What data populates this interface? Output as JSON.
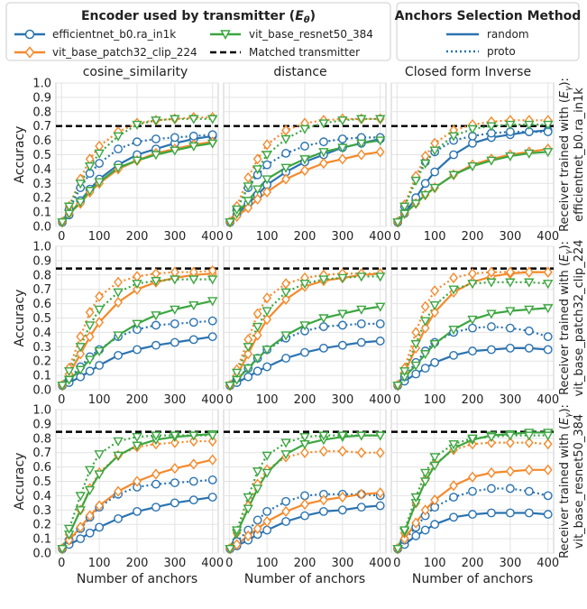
{
  "legend_encoders": {
    "title_text": "Encoder used by transmitter (",
    "title_math": "E",
    "title_sub": "θ",
    "title_close": ")",
    "entries": [
      "efficientnet_b0.ra_in1k",
      "vit_base_patch32_clip_224",
      "vit_base_resnet50_384",
      "Matched transmitter"
    ]
  },
  "legend_methods": {
    "title": "Anchors Selection Method",
    "entries": [
      "random",
      "proto"
    ]
  },
  "colors": {
    "efficientnet": "#2a73b0",
    "vit_clip": "#f5892a",
    "vit_resnet": "#3ca640",
    "matched": "#000000",
    "grid": "#e3e3e3",
    "frame": "#cccccc"
  },
  "row_label_prefix": "Receiver trained with (",
  "row_label_math": "E",
  "row_label_sub": "γ",
  "row_label_close": "):",
  "chart_data": {
    "type": "line",
    "columns": [
      "cosine_similarity",
      "distance",
      "Closed form Inverse"
    ],
    "rows": [
      "efficientnet_b0.ra_in1k",
      "vit_base_patch32_clip_224",
      "vit_base_resnet50_384"
    ],
    "xlabel": "Number of anchors",
    "ylabel": "Accuracy",
    "xlim": [
      -15,
      415
    ],
    "ylim": [
      0,
      1.0
    ],
    "xticks": [
      0,
      100,
      200,
      300,
      400
    ],
    "yticks": [
      "0.0",
      "0.1",
      "0.2",
      "0.3",
      "0.4",
      "0.5",
      "0.6",
      "0.7",
      "0.8",
      "0.9",
      "1.0"
    ],
    "x": [
      2,
      20,
      50,
      75,
      100,
      150,
      200,
      250,
      300,
      350,
      400
    ],
    "matched": [
      0.7,
      0.845,
      0.845
    ],
    "panels": [
      [
        {
          "eff_random": [
            0.03,
            0.08,
            0.18,
            0.26,
            0.33,
            0.43,
            0.5,
            0.54,
            0.58,
            0.61,
            0.63
          ],
          "eff_proto": [
            0.03,
            0.12,
            0.27,
            0.37,
            0.44,
            0.54,
            0.59,
            0.61,
            0.62,
            0.63,
            0.64
          ],
          "clip_random": [
            0.03,
            0.09,
            0.16,
            0.24,
            0.3,
            0.4,
            0.46,
            0.51,
            0.54,
            0.57,
            0.59
          ],
          "clip_proto": [
            0.03,
            0.14,
            0.33,
            0.47,
            0.56,
            0.66,
            0.72,
            0.74,
            0.75,
            0.76,
            0.76
          ],
          "res_random": [
            0.03,
            0.09,
            0.17,
            0.25,
            0.31,
            0.41,
            0.46,
            0.5,
            0.53,
            0.56,
            0.58
          ],
          "res_proto": [
            0.03,
            0.14,
            0.3,
            0.42,
            0.51,
            0.63,
            0.71,
            0.74,
            0.75,
            0.75,
            0.75
          ]
        },
        {
          "eff_random": [
            0.03,
            0.08,
            0.16,
            0.22,
            0.29,
            0.38,
            0.45,
            0.5,
            0.55,
            0.58,
            0.61
          ],
          "eff_proto": [
            0.03,
            0.13,
            0.27,
            0.36,
            0.43,
            0.51,
            0.56,
            0.59,
            0.61,
            0.62,
            0.62
          ],
          "clip_random": [
            0.03,
            0.07,
            0.13,
            0.19,
            0.24,
            0.33,
            0.39,
            0.44,
            0.47,
            0.5,
            0.52
          ],
          "clip_proto": [
            0.03,
            0.14,
            0.34,
            0.47,
            0.57,
            0.67,
            0.72,
            0.74,
            0.75,
            0.75,
            0.75
          ],
          "res_random": [
            0.03,
            0.09,
            0.18,
            0.26,
            0.33,
            0.41,
            0.47,
            0.52,
            0.55,
            0.58,
            0.6
          ],
          "res_proto": [
            0.03,
            0.12,
            0.28,
            0.4,
            0.5,
            0.61,
            0.68,
            0.72,
            0.74,
            0.75,
            0.75
          ]
        },
        {
          "eff_random": [
            0.03,
            0.09,
            0.2,
            0.3,
            0.38,
            0.5,
            0.58,
            0.62,
            0.64,
            0.66,
            0.67
          ],
          "eff_proto": [
            0.03,
            0.14,
            0.34,
            0.45,
            0.52,
            0.6,
            0.63,
            0.65,
            0.66,
            0.66,
            0.66
          ],
          "clip_random": [
            0.03,
            0.09,
            0.16,
            0.22,
            0.27,
            0.36,
            0.43,
            0.47,
            0.5,
            0.52,
            0.54
          ],
          "clip_proto": [
            0.03,
            0.15,
            0.35,
            0.49,
            0.58,
            0.67,
            0.71,
            0.73,
            0.74,
            0.74,
            0.74
          ],
          "res_random": [
            0.03,
            0.09,
            0.16,
            0.22,
            0.27,
            0.36,
            0.42,
            0.46,
            0.49,
            0.51,
            0.52
          ],
          "res_proto": [
            0.03,
            0.14,
            0.32,
            0.44,
            0.53,
            0.63,
            0.68,
            0.7,
            0.71,
            0.71,
            0.71
          ]
        }
      ],
      [
        {
          "eff_random": [
            0.03,
            0.05,
            0.09,
            0.13,
            0.17,
            0.24,
            0.28,
            0.31,
            0.33,
            0.35,
            0.37
          ],
          "eff_proto": [
            0.03,
            0.08,
            0.16,
            0.23,
            0.28,
            0.37,
            0.42,
            0.45,
            0.46,
            0.47,
            0.48
          ],
          "clip_random": [
            0.03,
            0.11,
            0.25,
            0.37,
            0.47,
            0.61,
            0.7,
            0.75,
            0.78,
            0.8,
            0.81
          ],
          "clip_proto": [
            0.03,
            0.15,
            0.37,
            0.54,
            0.65,
            0.75,
            0.79,
            0.81,
            0.82,
            0.82,
            0.83
          ],
          "res_random": [
            0.03,
            0.07,
            0.14,
            0.21,
            0.27,
            0.38,
            0.46,
            0.52,
            0.56,
            0.59,
            0.62
          ],
          "res_proto": [
            0.03,
            0.13,
            0.3,
            0.45,
            0.56,
            0.68,
            0.74,
            0.76,
            0.77,
            0.77,
            0.77
          ]
        },
        {
          "eff_random": [
            0.03,
            0.05,
            0.09,
            0.13,
            0.16,
            0.22,
            0.26,
            0.29,
            0.31,
            0.33,
            0.34
          ],
          "eff_proto": [
            0.03,
            0.08,
            0.15,
            0.22,
            0.28,
            0.36,
            0.41,
            0.44,
            0.45,
            0.46,
            0.46
          ],
          "clip_random": [
            0.03,
            0.1,
            0.25,
            0.38,
            0.49,
            0.63,
            0.72,
            0.76,
            0.78,
            0.8,
            0.81
          ],
          "clip_proto": [
            0.03,
            0.14,
            0.35,
            0.53,
            0.64,
            0.74,
            0.78,
            0.8,
            0.81,
            0.81,
            0.81
          ],
          "res_random": [
            0.03,
            0.07,
            0.15,
            0.22,
            0.28,
            0.38,
            0.45,
            0.5,
            0.53,
            0.56,
            0.58
          ],
          "res_proto": [
            0.03,
            0.12,
            0.3,
            0.44,
            0.55,
            0.68,
            0.74,
            0.77,
            0.78,
            0.79,
            0.79
          ]
        },
        {
          "eff_random": [
            0.03,
            0.06,
            0.11,
            0.15,
            0.19,
            0.24,
            0.27,
            0.28,
            0.29,
            0.29,
            0.28
          ],
          "eff_proto": [
            0.03,
            0.09,
            0.19,
            0.27,
            0.33,
            0.4,
            0.43,
            0.44,
            0.43,
            0.41,
            0.37
          ],
          "clip_random": [
            0.03,
            0.12,
            0.29,
            0.43,
            0.54,
            0.68,
            0.75,
            0.79,
            0.81,
            0.82,
            0.82
          ],
          "clip_proto": [
            0.03,
            0.15,
            0.4,
            0.58,
            0.69,
            0.78,
            0.81,
            0.82,
            0.82,
            0.82,
            0.82
          ],
          "res_random": [
            0.03,
            0.09,
            0.17,
            0.25,
            0.32,
            0.42,
            0.49,
            0.53,
            0.55,
            0.56,
            0.57
          ],
          "res_proto": [
            0.03,
            0.13,
            0.32,
            0.48,
            0.59,
            0.7,
            0.74,
            0.75,
            0.75,
            0.75,
            0.74
          ]
        }
      ],
      [
        {
          "eff_random": [
            0.03,
            0.06,
            0.1,
            0.14,
            0.18,
            0.24,
            0.29,
            0.32,
            0.35,
            0.37,
            0.39
          ],
          "eff_proto": [
            0.03,
            0.09,
            0.17,
            0.25,
            0.32,
            0.41,
            0.46,
            0.48,
            0.49,
            0.5,
            0.51
          ],
          "clip_random": [
            0.03,
            0.09,
            0.18,
            0.26,
            0.33,
            0.43,
            0.5,
            0.55,
            0.59,
            0.62,
            0.65
          ],
          "clip_proto": [
            0.03,
            0.13,
            0.3,
            0.45,
            0.56,
            0.68,
            0.74,
            0.76,
            0.77,
            0.78,
            0.78
          ],
          "res_random": [
            0.03,
            0.13,
            0.3,
            0.44,
            0.55,
            0.68,
            0.75,
            0.79,
            0.81,
            0.82,
            0.83
          ],
          "res_proto": [
            0.03,
            0.17,
            0.4,
            0.58,
            0.69,
            0.78,
            0.81,
            0.82,
            0.82,
            0.82,
            0.82
          ]
        },
        {
          "eff_random": [
            0.03,
            0.05,
            0.09,
            0.13,
            0.16,
            0.22,
            0.26,
            0.29,
            0.3,
            0.32,
            0.33
          ],
          "eff_proto": [
            0.03,
            0.08,
            0.16,
            0.23,
            0.29,
            0.36,
            0.4,
            0.41,
            0.41,
            0.41,
            0.4
          ],
          "clip_random": [
            0.03,
            0.06,
            0.12,
            0.17,
            0.22,
            0.29,
            0.34,
            0.37,
            0.39,
            0.41,
            0.42
          ],
          "clip_proto": [
            0.03,
            0.14,
            0.33,
            0.48,
            0.58,
            0.67,
            0.7,
            0.71,
            0.71,
            0.7,
            0.7
          ],
          "res_random": [
            0.03,
            0.14,
            0.31,
            0.45,
            0.56,
            0.69,
            0.76,
            0.79,
            0.81,
            0.82,
            0.82
          ],
          "res_proto": [
            0.03,
            0.16,
            0.39,
            0.57,
            0.68,
            0.77,
            0.81,
            0.82,
            0.82,
            0.82,
            0.82
          ]
        },
        {
          "eff_random": [
            0.03,
            0.06,
            0.12,
            0.16,
            0.2,
            0.25,
            0.27,
            0.28,
            0.28,
            0.28,
            0.27
          ],
          "eff_proto": [
            0.03,
            0.09,
            0.18,
            0.26,
            0.32,
            0.39,
            0.43,
            0.45,
            0.45,
            0.43,
            0.4
          ],
          "clip_random": [
            0.03,
            0.1,
            0.21,
            0.3,
            0.37,
            0.47,
            0.53,
            0.56,
            0.57,
            0.58,
            0.58
          ],
          "clip_proto": [
            0.03,
            0.14,
            0.35,
            0.51,
            0.62,
            0.72,
            0.76,
            0.77,
            0.77,
            0.77,
            0.76
          ],
          "res_random": [
            0.03,
            0.15,
            0.35,
            0.5,
            0.61,
            0.73,
            0.79,
            0.82,
            0.83,
            0.84,
            0.84
          ],
          "res_proto": [
            0.03,
            0.16,
            0.39,
            0.56,
            0.67,
            0.76,
            0.8,
            0.81,
            0.82,
            0.82,
            0.82
          ]
        }
      ]
    ]
  }
}
